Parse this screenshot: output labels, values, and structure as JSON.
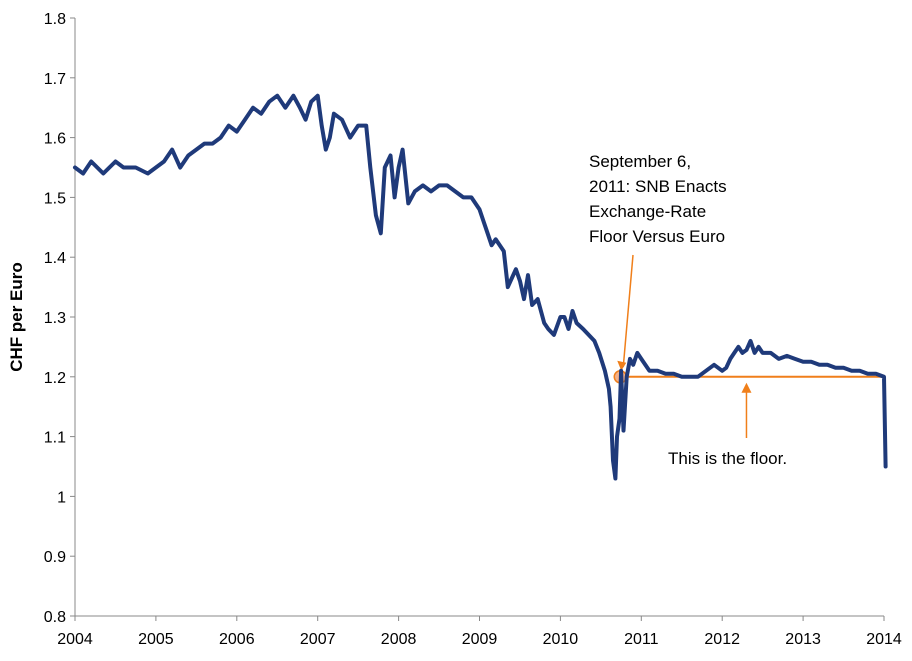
{
  "chart_data": {
    "type": "line",
    "title": "",
    "xlabel": "",
    "ylabel": "CHF per Euro",
    "xlim": [
      2004,
      2014
    ],
    "ylim": [
      0.8,
      1.8
    ],
    "x_ticks": [
      "2004",
      "2005",
      "2006",
      "2007",
      "2008",
      "2009",
      "2010",
      "2011",
      "2012",
      "2013",
      "2014"
    ],
    "y_ticks": [
      "0.8",
      "0.9",
      "1",
      "1.1",
      "1.2",
      "1.3",
      "1.4",
      "1.5",
      "1.6",
      "1.7",
      "1.8"
    ],
    "grid": false,
    "legend": "none",
    "colors": {
      "series": "#1f3a7a",
      "annotation": "#f07f1a",
      "marker_fill": "#f3b08a"
    },
    "series": [
      {
        "x": [
          2004.0,
          2004.1,
          2004.2,
          2004.35,
          2004.5,
          2004.6,
          2004.75,
          2004.9,
          2005.0,
          2005.1,
          2005.2,
          2005.3,
          2005.4,
          2005.5,
          2005.6,
          2005.7,
          2005.8,
          2005.9,
          2006.0,
          2006.1,
          2006.2,
          2006.3,
          2006.4,
          2006.5,
          2006.6,
          2006.7,
          2006.78,
          2006.85,
          2006.92,
          2007.0,
          2007.05,
          2007.1,
          2007.15,
          2007.2,
          2007.3,
          2007.4,
          2007.5,
          2007.6,
          2007.65,
          2007.72,
          2007.78,
          2007.83,
          2007.9,
          2007.95,
          2008.0,
          2008.05,
          2008.12,
          2008.2,
          2008.3,
          2008.4,
          2008.5,
          2008.6,
          2008.7,
          2008.8,
          2008.9,
          2009.0,
          2009.05,
          2009.1,
          2009.15,
          2009.2,
          2009.3,
          2009.35,
          2009.45,
          2009.5,
          2009.55,
          2009.6,
          2009.65,
          2009.72,
          2009.8,
          2009.85,
          2009.92,
          2010.0,
          2010.05,
          2010.1,
          2010.15,
          2010.2,
          2010.28,
          2010.35,
          2010.42,
          2010.48,
          2010.55,
          2010.6,
          2010.62,
          2010.65,
          2010.68,
          2010.7,
          2010.73,
          2010.75,
          2010.78,
          2010.82,
          2010.86,
          2010.9,
          2010.95,
          2011.0,
          2011.05,
          2011.1,
          2011.2,
          2011.3,
          2011.4,
          2011.5,
          2011.6,
          2011.7,
          2011.8,
          2011.9,
          2012.0,
          2012.05,
          2012.1,
          2012.15,
          2012.2,
          2012.25,
          2012.3,
          2012.35,
          2012.4,
          2012.45,
          2012.5,
          2012.6,
          2012.7,
          2012.8,
          2012.9,
          2013.0,
          2013.1,
          2013.2,
          2013.3,
          2013.4,
          2013.5,
          2013.6,
          2013.7,
          2013.8,
          2013.9,
          2014.0,
          2014.02
        ],
        "y": [
          1.55,
          1.54,
          1.56,
          1.54,
          1.56,
          1.55,
          1.55,
          1.54,
          1.55,
          1.56,
          1.58,
          1.55,
          1.57,
          1.58,
          1.59,
          1.59,
          1.6,
          1.62,
          1.61,
          1.63,
          1.65,
          1.64,
          1.66,
          1.67,
          1.65,
          1.67,
          1.65,
          1.63,
          1.66,
          1.67,
          1.62,
          1.58,
          1.6,
          1.64,
          1.63,
          1.6,
          1.62,
          1.62,
          1.55,
          1.47,
          1.44,
          1.55,
          1.57,
          1.5,
          1.55,
          1.58,
          1.49,
          1.51,
          1.52,
          1.51,
          1.52,
          1.52,
          1.51,
          1.5,
          1.5,
          1.48,
          1.46,
          1.44,
          1.42,
          1.43,
          1.41,
          1.35,
          1.38,
          1.36,
          1.33,
          1.37,
          1.32,
          1.33,
          1.29,
          1.28,
          1.27,
          1.3,
          1.3,
          1.28,
          1.31,
          1.29,
          1.28,
          1.27,
          1.26,
          1.24,
          1.21,
          1.18,
          1.15,
          1.06,
          1.03,
          1.1,
          1.13,
          1.21,
          1.11,
          1.2,
          1.23,
          1.22,
          1.24,
          1.23,
          1.22,
          1.21,
          1.21,
          1.205,
          1.205,
          1.2,
          1.2,
          1.2,
          1.21,
          1.22,
          1.21,
          1.215,
          1.23,
          1.24,
          1.25,
          1.24,
          1.245,
          1.26,
          1.24,
          1.25,
          1.24,
          1.24,
          1.23,
          1.235,
          1.23,
          1.225,
          1.225,
          1.22,
          1.22,
          1.215,
          1.215,
          1.21,
          1.21,
          1.205,
          1.205,
          1.2,
          1.05
        ]
      }
    ],
    "annotations": [
      {
        "text": "September 6, 2011: SNB Enacts Exchange-Rate Floor Versus Euro",
        "x": 2010.74,
        "y": 1.2
      },
      {
        "text": "This is the floor.",
        "x": 2012.3,
        "y": 1.2
      }
    ],
    "floor_line": {
      "y": 1.2,
      "x_start": 2010.74,
      "x_end": 2014.0
    }
  },
  "annot_lines": {
    "sep6": [
      "September 6,",
      "2011: SNB Enacts",
      "Exchange-Rate",
      "Floor Versus Euro"
    ],
    "floor": "This is the floor."
  }
}
